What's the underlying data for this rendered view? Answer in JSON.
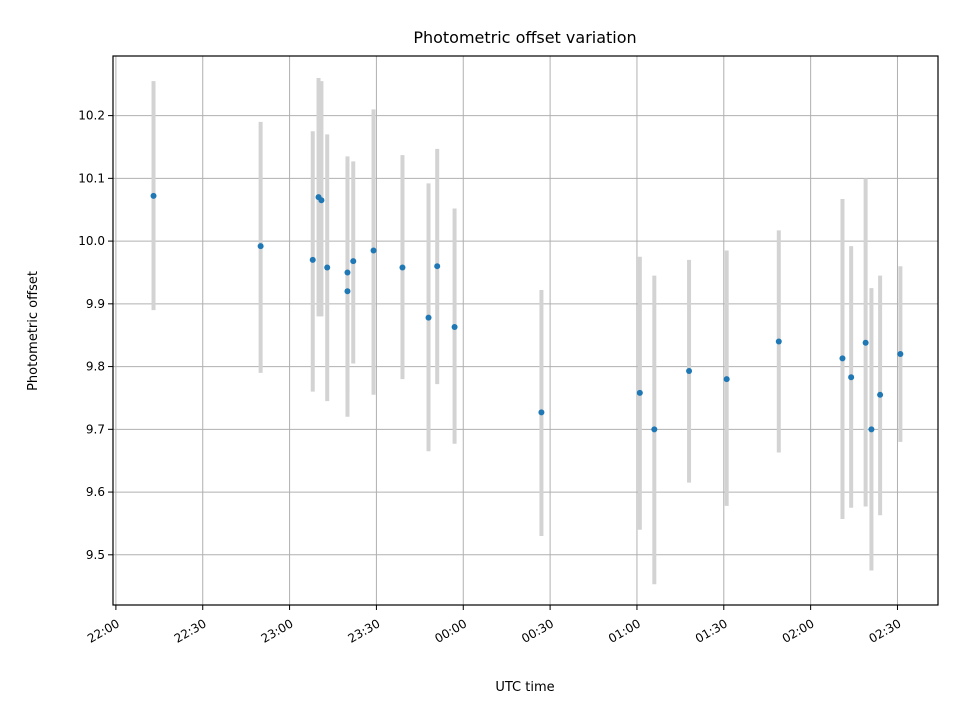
{
  "chart_data": {
    "type": "scatter",
    "title": "Photometric offset variation",
    "xlabel": "UTC time",
    "ylabel": "Photometric offset",
    "x_tick_labels": [
      "22:00",
      "22:30",
      "23:00",
      "23:30",
      "00:00",
      "00:30",
      "01:00",
      "01:30",
      "02:00",
      "02:30"
    ],
    "y_tick_labels": [
      "9.5",
      "9.6",
      "9.7",
      "9.8",
      "9.9",
      "10.0",
      "10.1",
      "10.2"
    ],
    "y_ticks": [
      9.5,
      9.6,
      9.7,
      9.8,
      9.9,
      10.0,
      10.1,
      10.2
    ],
    "xlim": [
      "21:59",
      "02:44"
    ],
    "ylim": [
      9.42,
      10.295
    ],
    "grid": true,
    "colors": {
      "marker": "#1f77b4",
      "errorbar": "#d3d3d3",
      "grid": "#b0b0b0"
    },
    "points": [
      {
        "x": "22:13",
        "y": 10.072,
        "ylow": 9.89,
        "yhigh": 10.255
      },
      {
        "x": "22:50",
        "y": 9.992,
        "ylow": 9.79,
        "yhigh": 10.19
      },
      {
        "x": "23:08",
        "y": 9.97,
        "ylow": 9.76,
        "yhigh": 10.175
      },
      {
        "x": "23:10",
        "y": 10.07,
        "ylow": 9.88,
        "yhigh": 10.26
      },
      {
        "x": "23:11",
        "y": 10.065,
        "ylow": 9.88,
        "yhigh": 10.255
      },
      {
        "x": "23:13",
        "y": 9.958,
        "ylow": 9.745,
        "yhigh": 10.17
      },
      {
        "x": "23:20",
        "y": 9.92,
        "ylow": 9.72,
        "yhigh": 10.125
      },
      {
        "x": "23:20",
        "y": 9.95,
        "ylow": 9.76,
        "yhigh": 10.135
      },
      {
        "x": "23:22",
        "y": 9.968,
        "ylow": 9.805,
        "yhigh": 10.127
      },
      {
        "x": "23:29",
        "y": 9.985,
        "ylow": 9.755,
        "yhigh": 10.21
      },
      {
        "x": "23:39",
        "y": 9.958,
        "ylow": 9.78,
        "yhigh": 10.137
      },
      {
        "x": "23:48",
        "y": 9.878,
        "ylow": 9.665,
        "yhigh": 10.092
      },
      {
        "x": "23:51",
        "y": 9.96,
        "ylow": 9.772,
        "yhigh": 10.147
      },
      {
        "x": "23:57",
        "y": 9.863,
        "ylow": 9.677,
        "yhigh": 10.052
      },
      {
        "x": "00:27",
        "y": 9.727,
        "ylow": 9.53,
        "yhigh": 9.922
      },
      {
        "x": "01:01",
        "y": 9.758,
        "ylow": 9.54,
        "yhigh": 9.975
      },
      {
        "x": "01:06",
        "y": 9.7,
        "ylow": 9.453,
        "yhigh": 9.945
      },
      {
        "x": "01:18",
        "y": 9.793,
        "ylow": 9.615,
        "yhigh": 9.97
      },
      {
        "x": "01:31",
        "y": 9.78,
        "ylow": 9.578,
        "yhigh": 9.985
      },
      {
        "x": "01:49",
        "y": 9.84,
        "ylow": 9.663,
        "yhigh": 10.017
      },
      {
        "x": "02:11",
        "y": 9.813,
        "ylow": 9.557,
        "yhigh": 10.067
      },
      {
        "x": "02:14",
        "y": 9.783,
        "ylow": 9.575,
        "yhigh": 9.992
      },
      {
        "x": "02:19",
        "y": 9.838,
        "ylow": 9.577,
        "yhigh": 10.1
      },
      {
        "x": "02:21",
        "y": 9.7,
        "ylow": 9.475,
        "yhigh": 9.925
      },
      {
        "x": "02:24",
        "y": 9.755,
        "ylow": 9.563,
        "yhigh": 9.945
      },
      {
        "x": "02:31",
        "y": 9.82,
        "ylow": 9.68,
        "yhigh": 9.96
      }
    ]
  }
}
